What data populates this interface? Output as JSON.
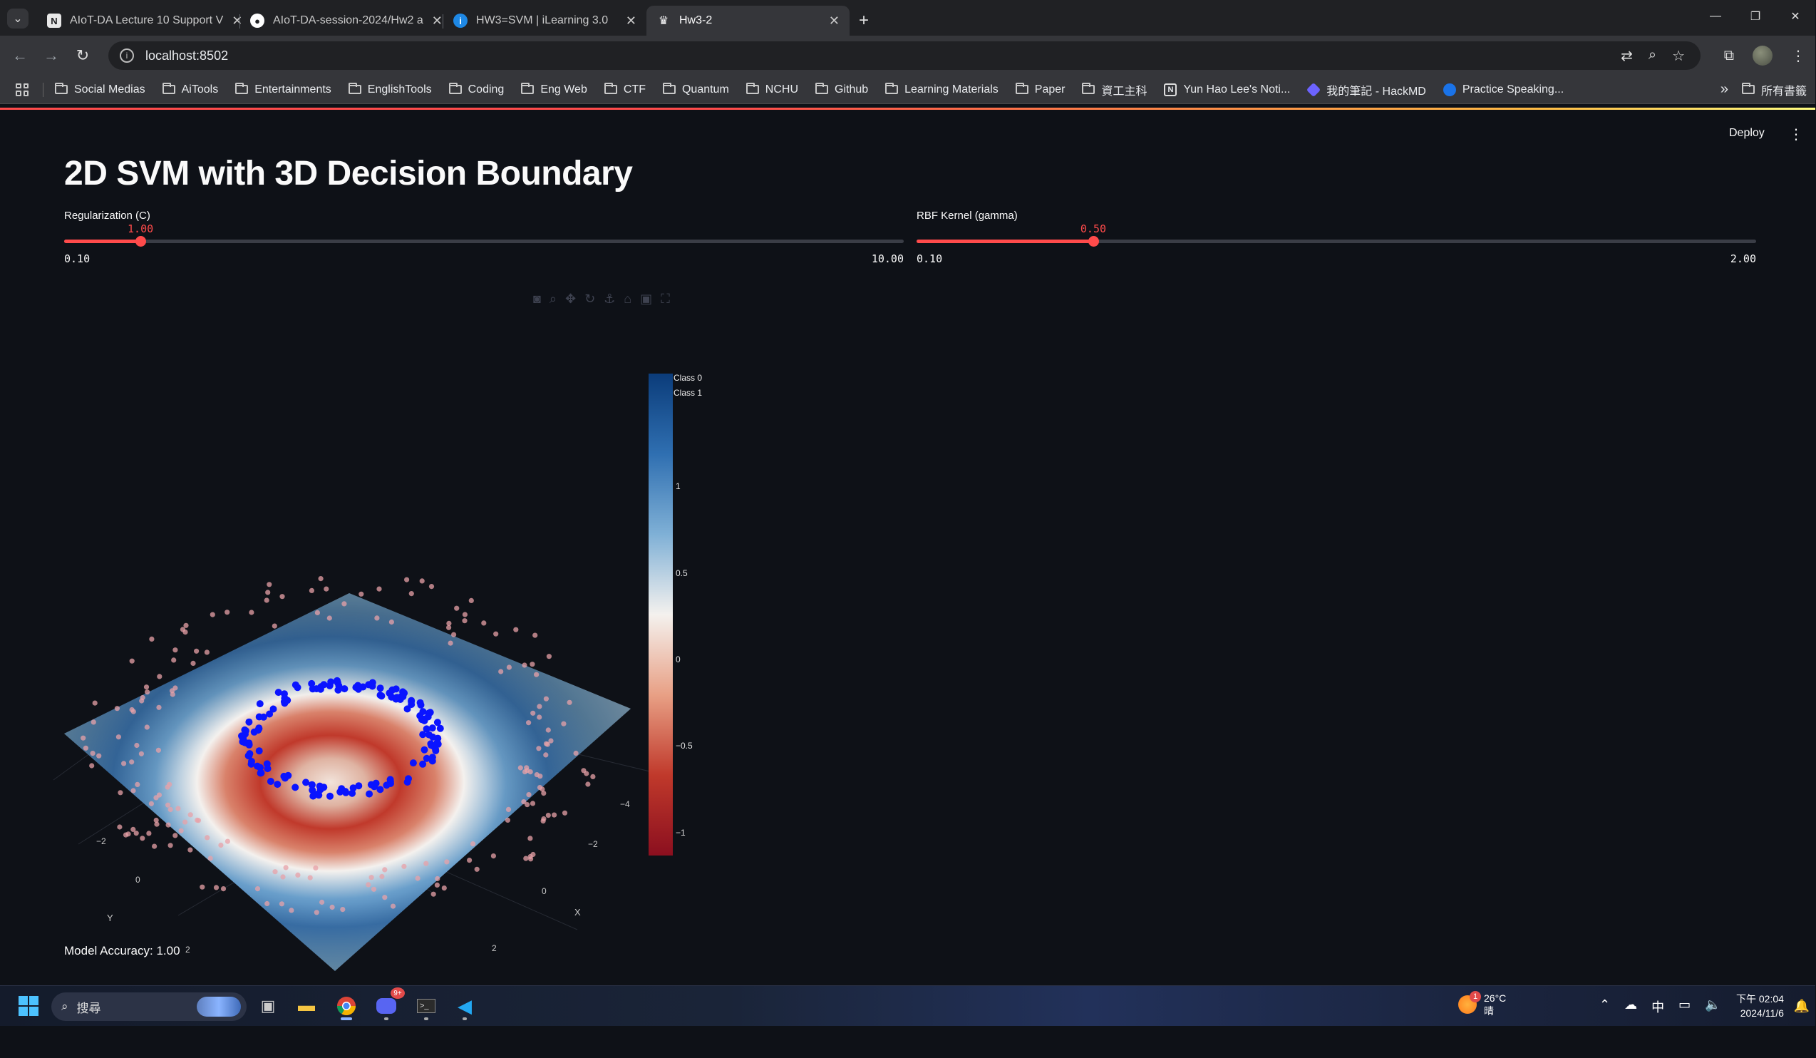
{
  "browser": {
    "tabs": [
      {
        "title": "AIoT-DA Lecture 10 Support V",
        "icon": "notion-icon"
      },
      {
        "title": "AIoT-DA-session-2024/Hw2 a",
        "icon": "github-icon"
      },
      {
        "title": "HW3=SVM | iLearning 3.0",
        "icon": "ilearning-icon"
      },
      {
        "title": "Hw3-2",
        "icon": "streamlit-icon",
        "active": true
      }
    ],
    "address": "localhost:8502",
    "bookmarks": [
      "Social Medias",
      "AiTools",
      "Entertainments",
      "EnglishTools",
      "Coding",
      "Eng Web",
      "CTF",
      "Quantum",
      "NCHU",
      "Github",
      "Learning Materials",
      "Paper",
      "資工主科",
      "Yun Hao Lee's Noti...",
      "我的筆記 - HackMD",
      "Practice Speaking..."
    ],
    "all_bookmarks": "所有書籤"
  },
  "app": {
    "deploy_label": "Deploy",
    "title": "2D SVM with 3D Decision Boundary",
    "slider_c": {
      "label": "Regularization (C)",
      "value": "1.00",
      "min": "0.10",
      "max": "10.00",
      "fraction": 0.0909
    },
    "slider_gamma": {
      "label": "RBF Kernel (gamma)",
      "value": "0.50",
      "min": "0.10",
      "max": "2.00",
      "fraction": 0.2105
    },
    "accuracy": "Model Accuracy: 1.00"
  },
  "plot": {
    "legend": [
      "Class 0",
      "Class 1"
    ],
    "colorbar_ticks": [
      "1",
      "0.5",
      "0",
      "−0.5",
      "−1"
    ],
    "colorscale": [
      "#0b3c7a",
      "#2f6fb1",
      "#7fb0d6",
      "#f4f1ee",
      "#e8a085",
      "#c0392b",
      "#8b0f1f"
    ],
    "axis_x": {
      "label": "X",
      "ticks": [
        "−2",
        "0",
        "2"
      ]
    },
    "axis_y": {
      "label": "Y",
      "ticks": [
        "−2",
        "0",
        "2"
      ]
    },
    "axis_z_tick": "−4",
    "class0_color": "#e8a1a8",
    "class1_color": "#0a14ff"
  },
  "taskbar": {
    "search_placeholder": "搜尋",
    "weather_temp": "26°C",
    "weather_cond": "晴",
    "weather_badge": "1",
    "discord_badge": "9+",
    "ime": "中",
    "time": "下午 02:04",
    "date": "2024/11/6"
  }
}
